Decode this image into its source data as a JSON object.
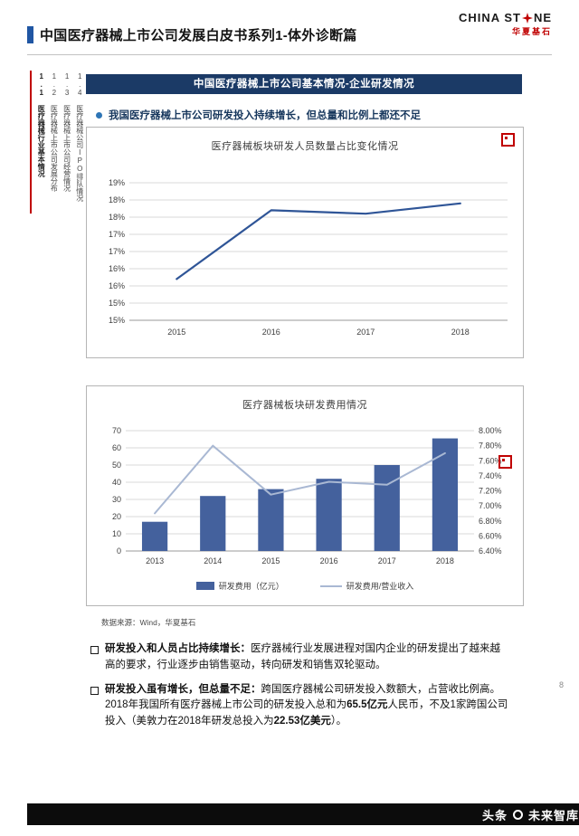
{
  "header": {
    "title": "中国医疗器械上市公司发展白皮书系列1-体外诊断篇",
    "logo": {
      "text_left": "CHINA ST",
      "text_right": "NE",
      "subtext": "华夏基石"
    }
  },
  "sidebar": {
    "items": [
      {
        "label": "1.1 医疗器械行业基本情况"
      },
      {
        "label": "1.2 医疗器械上市公司发展分布"
      },
      {
        "label": "1.3 医疗器械上市公司经营情况"
      },
      {
        "label": "1.4 医疗器械公司IPO排队情况"
      }
    ]
  },
  "section_banner": "中国医疗器械上市公司基本情况-企业研发情况",
  "key_point": "我国医疗器械上市公司研发投入持续增长，但总量和比例上都还不足",
  "chart_data": [
    {
      "type": "line",
      "title": "医疗器械板块研发人员数量占比变化情况",
      "categories": [
        "2015",
        "2016",
        "2017",
        "2018"
      ],
      "series": [
        {
          "name": "研发人员数量占比",
          "values": [
            16.2,
            18.2,
            18.1,
            18.4
          ],
          "color": "#2F5597"
        }
      ],
      "ylim": [
        15.0,
        19.0
      ],
      "ytick_step": 0.5,
      "ytick_labels_bottom_to_top": [
        "15%",
        "15%",
        "16%",
        "16%",
        "17%",
        "17%",
        "18%",
        "18%",
        "19%"
      ],
      "grid": true,
      "legend_position": "none"
    },
    {
      "type": "bar+line",
      "title": "医疗器械板块研发费用情况",
      "categories": [
        "2013",
        "2014",
        "2015",
        "2016",
        "2017",
        "2018"
      ],
      "series": [
        {
          "name": "研发费用（亿元）",
          "type": "bar",
          "axis": "left",
          "values": [
            17,
            32,
            36,
            42,
            50,
            65.5
          ],
          "color": "#44619D"
        },
        {
          "name": "研发费用/营业收入",
          "type": "line",
          "axis": "right",
          "values": [
            6.9,
            7.8,
            7.15,
            7.32,
            7.28,
            7.7
          ],
          "unit": "%",
          "color": "#A9B8D3"
        }
      ],
      "left_ylim": [
        0,
        70
      ],
      "left_tick_labels_bottom_to_top": [
        "0",
        "10",
        "20",
        "30",
        "40",
        "50",
        "60",
        "70"
      ],
      "right_ylim": [
        6.4,
        8.0
      ],
      "right_tick_labels_bottom_to_top": [
        "6.40%",
        "6.60%",
        "6.80%",
        "7.00%",
        "7.20%",
        "7.40%",
        "7.60%",
        "7.80%",
        "8.00%"
      ],
      "grid": true,
      "legend_position": "bottom"
    }
  ],
  "source_note": "数据来源：Wind，华夏基石",
  "notes": {
    "items": [
      {
        "lead": "研发投入和人员占比持续增长：",
        "body": "医疗器械行业发展进程对国内企业的研发提出了越来越高的要求，行业逐步由销售驱动，转向研发和销售双轮驱动。"
      },
      {
        "lead": "研发投入虽有增长，但总量不足：",
        "p1": "跨国医疗器械公司研发投入数额大，占营收比例高。2018年我国所有医疗器械上市公司的研发投入总和为",
        "b1": "65.5亿元",
        "p2": "人民币，不及1家跨国公司投入（美敦力在2018年研发总投入为",
        "b2": "22.53亿美元",
        "p3": "）。"
      }
    ]
  },
  "page_number": "8",
  "watermark": {
    "prefix": "头条",
    "name": "未来智库"
  },
  "colors": {
    "accent_blue": "#2056A3",
    "banner_navy": "#1B3A66",
    "brand_red": "#C00000",
    "bullet_blue": "#2E75B6",
    "bar_blue": "#44619D",
    "line_navy": "#2F5597",
    "line_light": "#A9B8D3"
  }
}
